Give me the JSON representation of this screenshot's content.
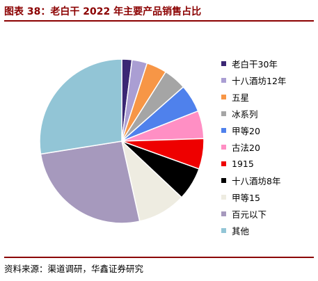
{
  "header": {
    "title": "图表 38：老白干 2022 年主要产品销售占比"
  },
  "source": {
    "text": "资料来源：渠道调研，华鑫证券研究"
  },
  "chart_data": {
    "type": "pie",
    "title": "图表 38：老白干 2022 年主要产品销售占比",
    "legend_position": "right",
    "start_angle_deg": 0,
    "direction": "clockwise",
    "slices": [
      {
        "label": "老白干30年",
        "value": 2.0,
        "color": "#3b2774"
      },
      {
        "label": "十八酒坊12年",
        "value": 3.0,
        "color": "#aa9ed3"
      },
      {
        "label": "五星",
        "value": 4.0,
        "color": "#f79646"
      },
      {
        "label": "冰系列",
        "value": 4.5,
        "color": "#a5a5a5"
      },
      {
        "label": "甲等20",
        "value": 5.5,
        "color": "#4f81ec"
      },
      {
        "label": "古法20",
        "value": 5.5,
        "color": "#ff8fc4"
      },
      {
        "label": "1915",
        "value": 6.0,
        "color": "#ee0000"
      },
      {
        "label": "十八酒坊8年",
        "value": 6.5,
        "color": "#000000"
      },
      {
        "label": "甲等15",
        "value": 9.5,
        "color": "#eeece1"
      },
      {
        "label": "百元以下",
        "value": 26.0,
        "color": "#a699bd"
      },
      {
        "label": "其他",
        "value": 27.5,
        "color": "#92c5d6"
      }
    ]
  }
}
